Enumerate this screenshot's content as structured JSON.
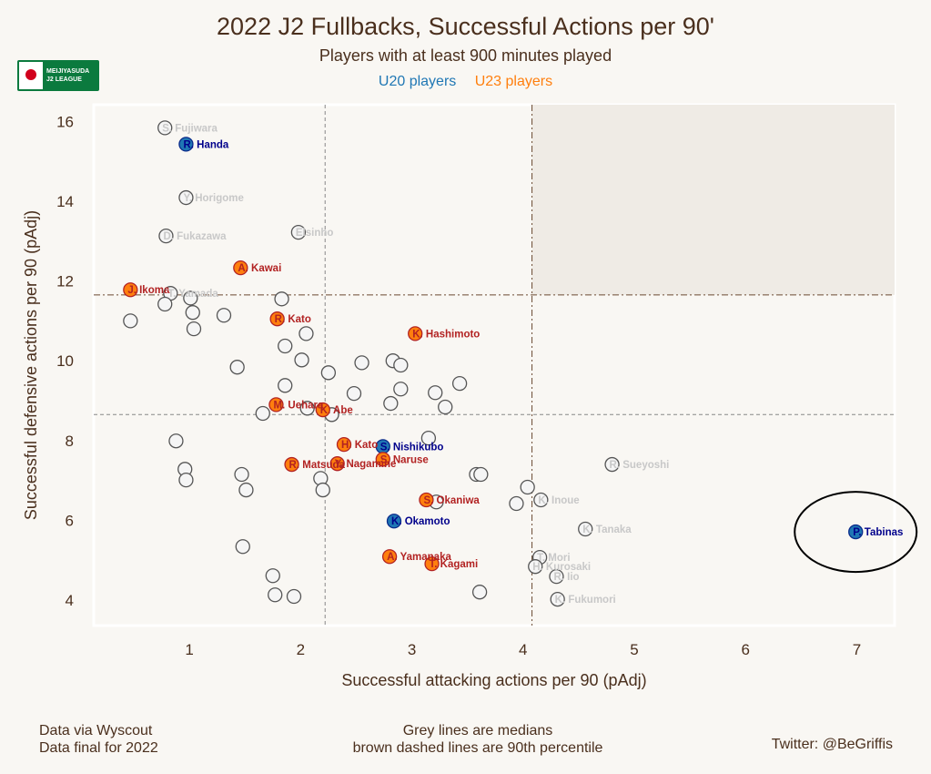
{
  "header": {
    "title": "2022 J2 Fullbacks, Successful Actions per 90'",
    "subtitle": "Players with at least 900 minutes played",
    "legend_u20": "U20 players",
    "legend_u23": "U23 players"
  },
  "logo": {
    "line1": "MEIJIYASUDA",
    "line2": "J2 LEAGUE"
  },
  "footer": {
    "left1": "Data via Wyscout",
    "left2": "Data final for 2022",
    "center1": "Grey lines are medians",
    "center2": "brown dashed lines are 90th percentile",
    "right": "Twitter: @BeGriffis"
  },
  "colors": {
    "u20": "#1f77b4",
    "u23": "#ff7f0e",
    "u20_text": "#00008b",
    "u23_text": "#b22222",
    "other_text": "#c8c8c8",
    "median": "#888888",
    "p90": "#6b4a33"
  },
  "chart_data": {
    "type": "scatter",
    "xlabel": "Successful attacking actions per 90 (pAdj)",
    "ylabel": "Successful defensive actions per 90 (pAdj)",
    "xlim": [
      0.14,
      7.34
    ],
    "ylim": [
      3.36,
      16.42
    ],
    "xticks": [
      1,
      2,
      3,
      4,
      5,
      6,
      7
    ],
    "yticks": [
      4,
      6,
      8,
      10,
      12,
      14,
      16
    ],
    "median_x": 2.22,
    "median_y": 8.65,
    "p90_x": 4.08,
    "p90_y": 11.65,
    "highlight_circle": "P. Tabinas",
    "points": [
      {
        "name": "S. Fujiwara",
        "x": 0.78,
        "y": 15.84,
        "group": "other"
      },
      {
        "name": "R. Handa",
        "x": 0.97,
        "y": 15.43,
        "group": "u20"
      },
      {
        "name": "Y. Horigome",
        "x": 0.97,
        "y": 14.09,
        "group": "other"
      },
      {
        "name": "D. Fukazawa",
        "x": 0.79,
        "y": 13.13,
        "group": "other"
      },
      {
        "name": "Elsinho",
        "x": 1.98,
        "y": 13.22,
        "group": "other"
      },
      {
        "name": "A. Kawai",
        "x": 1.46,
        "y": 12.33,
        "group": "u23"
      },
      {
        "name": "J. Ikoma",
        "x": 0.47,
        "y": 11.78,
        "group": "u23"
      },
      {
        "name": "T. Yamada",
        "x": 0.83,
        "y": 11.69,
        "group": "other"
      },
      {
        "name": "R. Kato",
        "x": 1.79,
        "y": 11.05,
        "group": "u23"
      },
      {
        "name": "K. Hashimoto",
        "x": 3.03,
        "y": 10.68,
        "group": "u23"
      },
      {
        "name": "M. Uehara",
        "x": 1.78,
        "y": 8.9,
        "group": "u23"
      },
      {
        "name": "K. Abe",
        "x": 2.2,
        "y": 8.77,
        "group": "u23"
      },
      {
        "name": "H. Kato",
        "x": 2.39,
        "y": 7.9,
        "group": "u23"
      },
      {
        "name": "S. Nishikubo",
        "x": 2.74,
        "y": 7.85,
        "group": "u20"
      },
      {
        "name": "S. Naruse",
        "x": 2.74,
        "y": 7.53,
        "group": "u23"
      },
      {
        "name": "Y. Nagamine",
        "x": 2.33,
        "y": 7.42,
        "group": "u23"
      },
      {
        "name": "R. Matsuda",
        "x": 1.92,
        "y": 7.4,
        "group": "u23"
      },
      {
        "name": "S. Okaniwa",
        "x": 3.13,
        "y": 6.51,
        "group": "u23"
      },
      {
        "name": "K. Okamoto",
        "x": 2.84,
        "y": 5.98,
        "group": "u20"
      },
      {
        "name": "A. Yamanaka",
        "x": 2.8,
        "y": 5.09,
        "group": "u23"
      },
      {
        "name": "T. Kagami",
        "x": 3.18,
        "y": 4.91,
        "group": "u23"
      },
      {
        "name": "R. Sueyoshi",
        "x": 4.8,
        "y": 7.4,
        "group": "other"
      },
      {
        "name": "K. Inoue",
        "x": 4.16,
        "y": 6.51,
        "group": "other"
      },
      {
        "name": "K. Tanaka",
        "x": 4.56,
        "y": 5.78,
        "group": "other"
      },
      {
        "name": "T. Mori",
        "x": 4.15,
        "y": 5.07,
        "group": "other"
      },
      {
        "name": "H. Kurosaki",
        "x": 4.11,
        "y": 4.84,
        "group": "other"
      },
      {
        "name": "R. Iio",
        "x": 4.3,
        "y": 4.59,
        "group": "other"
      },
      {
        "name": "K. Fukumori",
        "x": 4.31,
        "y": 4.02,
        "group": "other"
      },
      {
        "name": "P. Tabinas",
        "x": 6.99,
        "y": 5.71,
        "group": "u20"
      },
      {
        "x": 0.47,
        "y": 11.0
      },
      {
        "x": 0.78,
        "y": 11.42
      },
      {
        "x": 1.01,
        "y": 11.57
      },
      {
        "x": 1.03,
        "y": 11.21
      },
      {
        "x": 1.04,
        "y": 10.8
      },
      {
        "x": 1.31,
        "y": 11.14
      },
      {
        "x": 1.83,
        "y": 11.55
      },
      {
        "x": 2.05,
        "y": 10.68
      },
      {
        "x": 1.86,
        "y": 10.37
      },
      {
        "x": 2.01,
        "y": 10.02
      },
      {
        "x": 1.43,
        "y": 9.84
      },
      {
        "x": 1.86,
        "y": 9.38
      },
      {
        "x": 2.25,
        "y": 9.7
      },
      {
        "x": 2.55,
        "y": 9.95
      },
      {
        "x": 2.83,
        "y": 10.0
      },
      {
        "x": 2.9,
        "y": 9.89
      },
      {
        "x": 3.43,
        "y": 9.43
      },
      {
        "x": 3.21,
        "y": 9.2
      },
      {
        "x": 2.9,
        "y": 9.29
      },
      {
        "x": 2.48,
        "y": 9.18
      },
      {
        "x": 2.81,
        "y": 8.93
      },
      {
        "x": 3.3,
        "y": 8.84
      },
      {
        "x": 1.66,
        "y": 8.68
      },
      {
        "x": 2.06,
        "y": 8.81
      },
      {
        "x": 2.28,
        "y": 8.65
      },
      {
        "x": 0.88,
        "y": 7.99
      },
      {
        "x": 3.15,
        "y": 8.06
      },
      {
        "x": 0.96,
        "y": 7.28
      },
      {
        "x": 0.97,
        "y": 7.01
      },
      {
        "x": 1.47,
        "y": 7.15
      },
      {
        "x": 1.51,
        "y": 6.76
      },
      {
        "x": 2.18,
        "y": 7.05
      },
      {
        "x": 2.2,
        "y": 6.76
      },
      {
        "x": 3.58,
        "y": 7.15
      },
      {
        "x": 3.62,
        "y": 7.15
      },
      {
        "x": 4.04,
        "y": 6.83
      },
      {
        "x": 3.94,
        "y": 6.42
      },
      {
        "x": 3.22,
        "y": 6.46
      },
      {
        "x": 1.48,
        "y": 5.34
      },
      {
        "x": 1.75,
        "y": 4.61
      },
      {
        "x": 1.77,
        "y": 4.13
      },
      {
        "x": 1.94,
        "y": 4.09
      },
      {
        "x": 3.61,
        "y": 4.2
      }
    ]
  }
}
